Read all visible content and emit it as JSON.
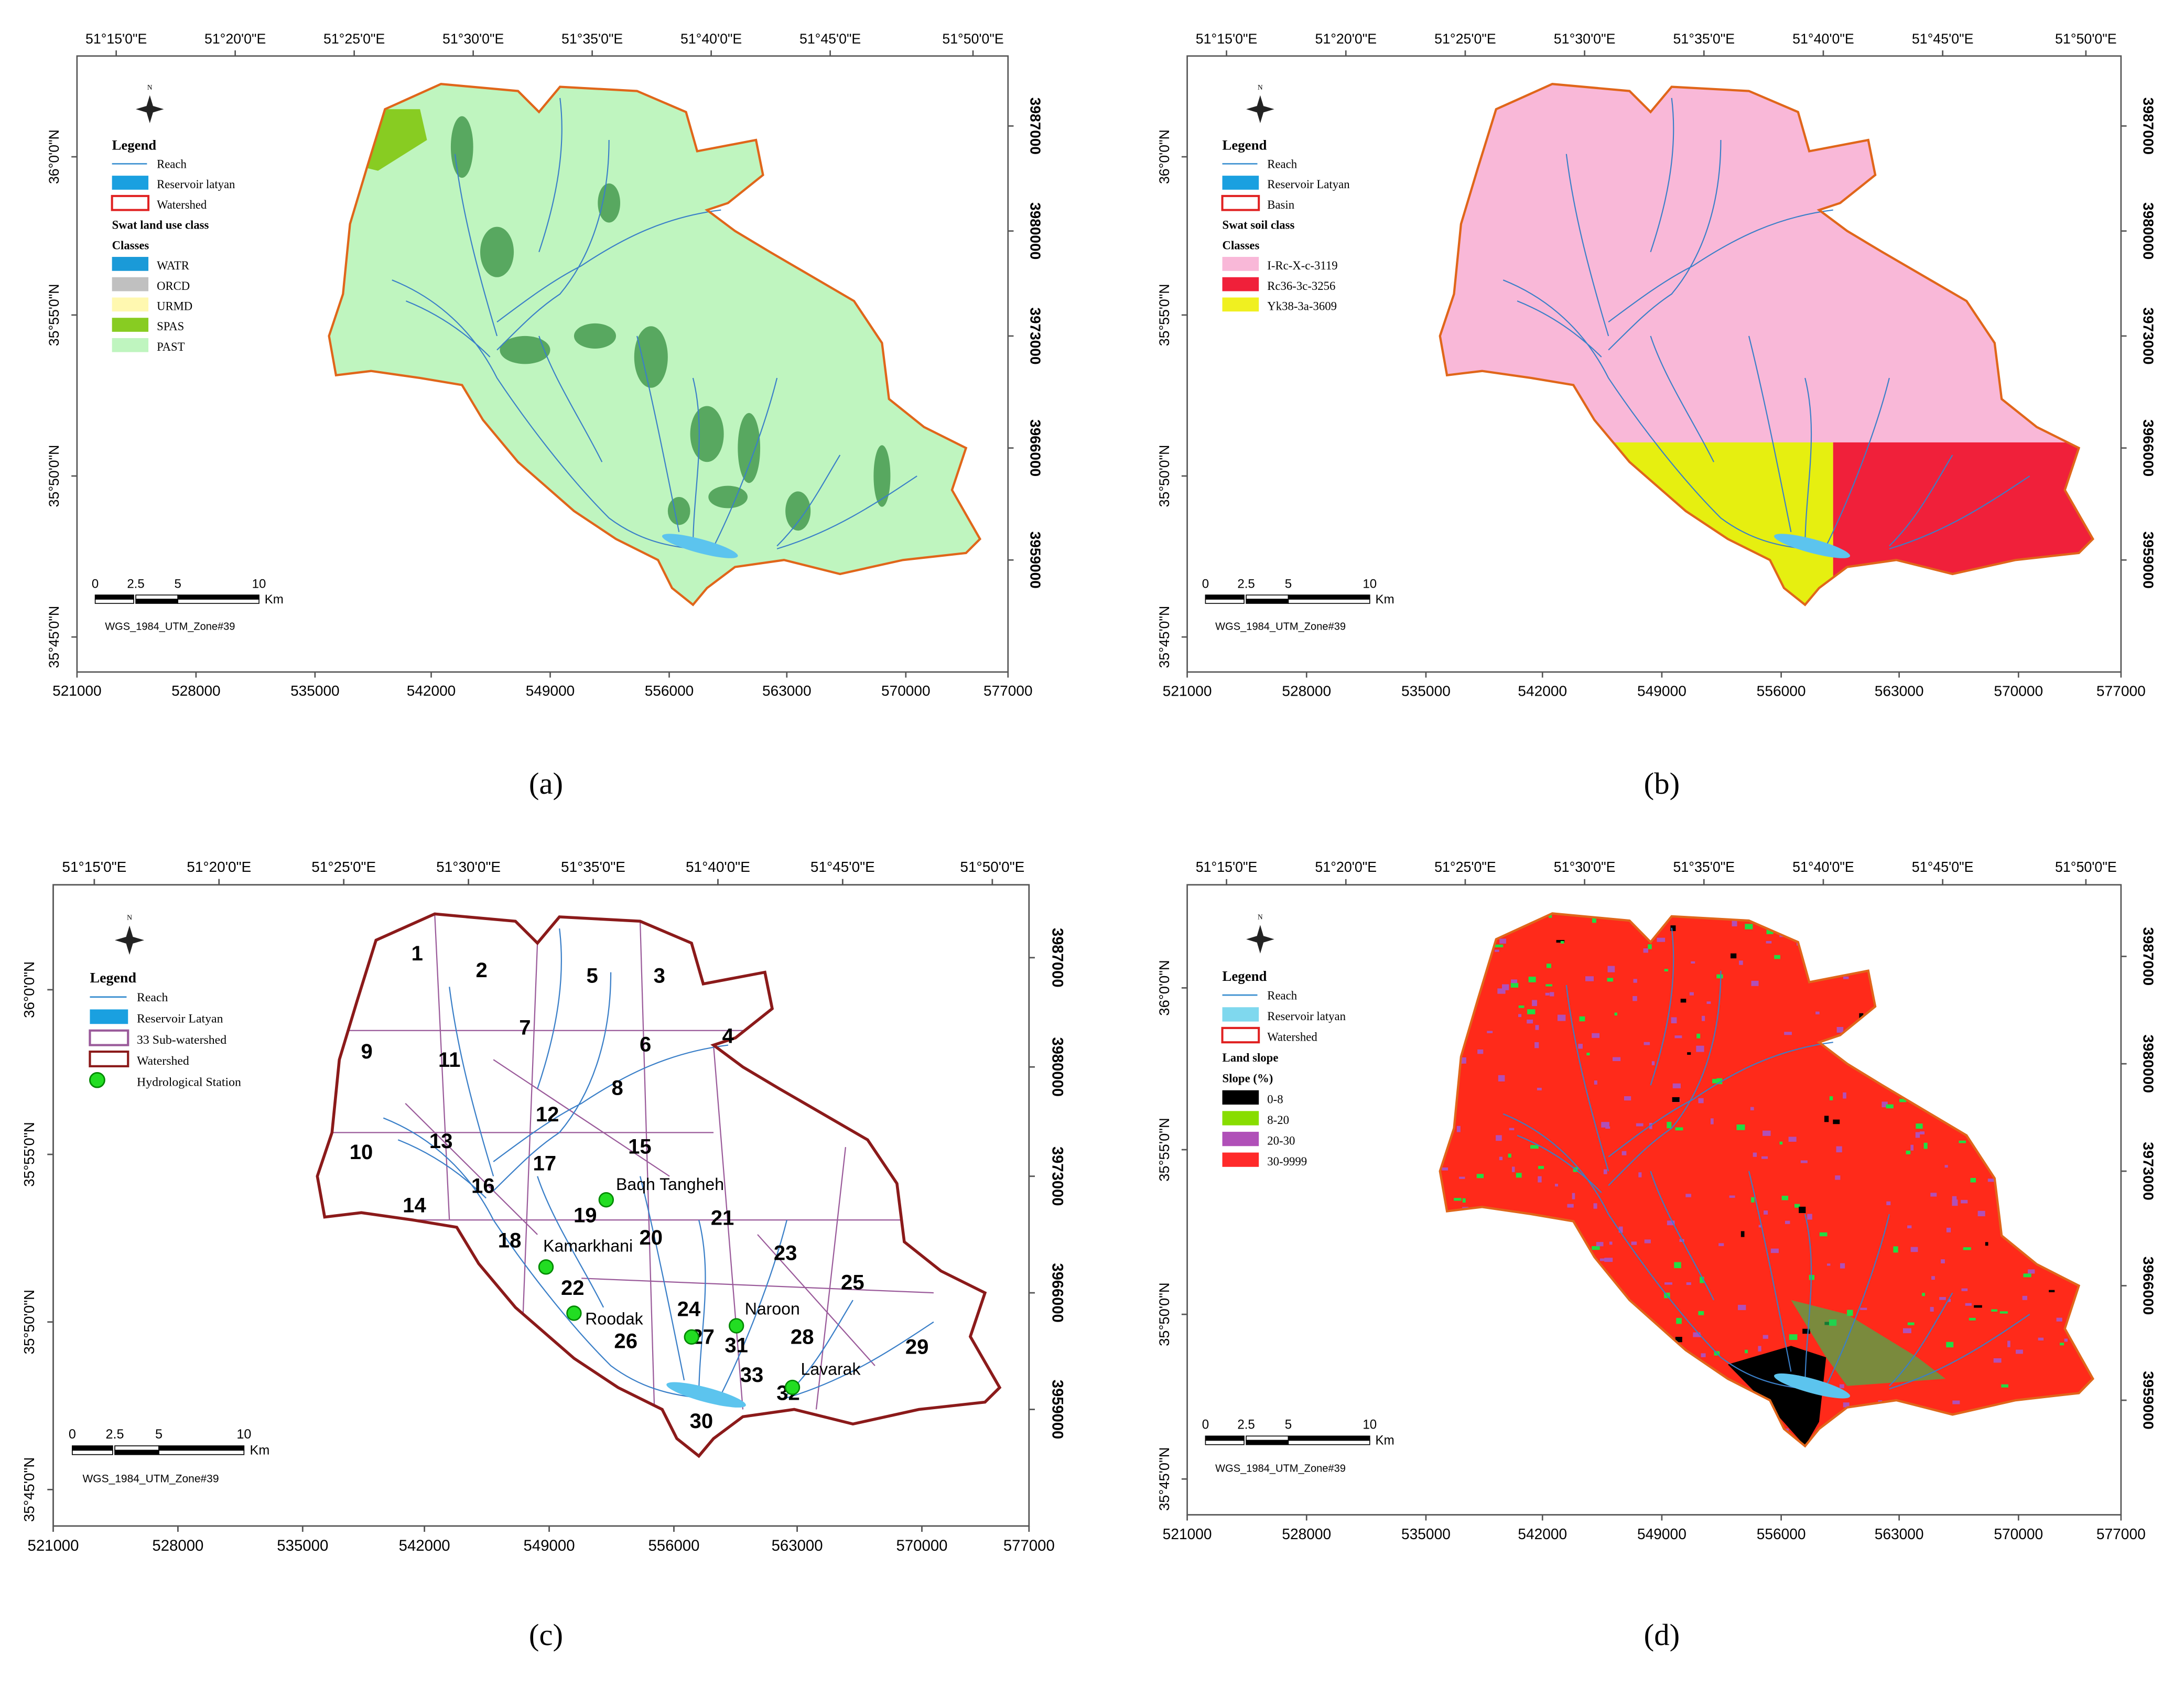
{
  "panels": [
    {
      "label": "(a)",
      "lon_ticks": [
        "51°15'0\"E",
        "51°20'0\"E",
        "51°25'0\"E",
        "51°30'0\"E",
        "51°35'0\"E",
        "51°40'0\"E",
        "51°45'0\"E",
        "51°50'0\"E"
      ],
      "lat_ticks": [
        "36°0'0\"N",
        "35°55'0\"N",
        "35°50'0\"N",
        "35°45'0\"N"
      ],
      "easting_ticks": [
        "521000",
        "528000",
        "535000",
        "542000",
        "549000",
        "556000",
        "563000",
        "570000",
        "577000"
      ],
      "northing_ticks": [
        "3987000",
        "3980000",
        "3973000",
        "3966000",
        "3959000"
      ],
      "north": "N",
      "legend": {
        "title": "Legend",
        "items": [
          {
            "text": "Reach",
            "symbol": "line",
            "color": "#3a8fd0"
          },
          {
            "text": "Reservoir latyan",
            "symbol": "fill",
            "color": "#1aa0e0"
          },
          {
            "text": "Watershed",
            "symbol": "outline",
            "color": "#e02020"
          },
          {
            "text": "Swat land use class"
          },
          {
            "text": "Classes"
          },
          {
            "text": "WATR",
            "symbol": "fill",
            "color": "#1a9ad8"
          },
          {
            "text": "ORCD",
            "symbol": "fill",
            "color": "#c0c0c0"
          },
          {
            "text": "URMD",
            "symbol": "fill",
            "color": "#fff8b0"
          },
          {
            "text": "SPAS",
            "symbol": "fill",
            "color": "#88cc22"
          },
          {
            "text": "PAST",
            "symbol": "fill",
            "color": "#bff5bf"
          }
        ]
      },
      "scale": [
        "0",
        "2.5",
        "5",
        "10"
      ],
      "scale_unit": "Km",
      "projection": "WGS_1984_UTM_Zone#39"
    },
    {
      "label": "(b)",
      "lon_ticks": [
        "51°15'0\"E",
        "51°20'0\"E",
        "51°25'0\"E",
        "51°30'0\"E",
        "51°35'0\"E",
        "51°40'0\"E",
        "51°45'0\"E",
        "51°50'0\"E"
      ],
      "lat_ticks": [
        "36°0'0\"N",
        "35°55'0\"N",
        "35°50'0\"N",
        "35°45'0\"N"
      ],
      "easting_ticks": [
        "521000",
        "528000",
        "535000",
        "542000",
        "549000",
        "556000",
        "563000",
        "570000",
        "577000"
      ],
      "northing_ticks": [
        "3987000",
        "3980000",
        "3973000",
        "3966000",
        "3959000"
      ],
      "north": "N",
      "legend": {
        "title": "Legend",
        "items": [
          {
            "text": "Reach",
            "symbol": "line",
            "color": "#3a8fd0"
          },
          {
            "text": "Reservoir Latyan",
            "symbol": "fill",
            "color": "#1aa0e0"
          },
          {
            "text": "Basin",
            "symbol": "outline",
            "color": "#e02020"
          },
          {
            "text": "Swat soil class"
          },
          {
            "text": "Classes"
          },
          {
            "text": "I-Rc-X-c-3119",
            "symbol": "fill",
            "color": "#f9b8d8"
          },
          {
            "text": "Rc36-3c-3256",
            "symbol": "fill",
            "color": "#f0203a"
          },
          {
            "text": "Yk38-3a-3609",
            "symbol": "fill",
            "color": "#f0f020"
          }
        ]
      },
      "scale": [
        "0",
        "2.5",
        "5",
        "10"
      ],
      "scale_unit": "Km",
      "projection": "WGS_1984_UTM_Zone#39"
    },
    {
      "label": "(c)",
      "lon_ticks": [
        "51°15'0\"E",
        "51°20'0\"E",
        "51°25'0\"E",
        "51°30'0\"E",
        "51°35'0\"E",
        "51°40'0\"E",
        "51°45'0\"E",
        "51°50'0\"E"
      ],
      "lat_ticks": [
        "36°0'0\"N",
        "35°55'0\"N",
        "35°50'0\"N",
        "35°45'0\"N"
      ],
      "easting_ticks": [
        "521000",
        "528000",
        "535000",
        "542000",
        "549000",
        "556000",
        "563000",
        "570000",
        "577000"
      ],
      "northing_ticks": [
        "3987000",
        "3980000",
        "3973000",
        "3966000",
        "3959000"
      ],
      "north": "N",
      "legend": {
        "title": "Legend",
        "items": [
          {
            "text": "Reach",
            "symbol": "line",
            "color": "#3a8fd0"
          },
          {
            "text": "Reservoir Latyan",
            "symbol": "fill",
            "color": "#1aa0e0"
          },
          {
            "text": "33 Sub-watershed",
            "symbol": "outline",
            "color": "#9a5a9a"
          },
          {
            "text": "Watershed",
            "symbol": "outline",
            "color": "#8b1a1a"
          },
          {
            "text": "Hydrological Station",
            "symbol": "dot",
            "color": "#22dd22"
          }
        ]
      },
      "scale": [
        "0",
        "2.5",
        "5",
        "10"
      ],
      "scale_unit": "Km",
      "projection": "WGS_1984_UTM_Zone#39",
      "subwatersheds": [
        "1",
        "2",
        "3",
        "4",
        "5",
        "6",
        "7",
        "8",
        "9",
        "10",
        "11",
        "12",
        "13",
        "14",
        "15",
        "16",
        "17",
        "18",
        "19",
        "20",
        "21",
        "22",
        "23",
        "24",
        "25",
        "26",
        "27",
        "28",
        "29",
        "30",
        "31",
        "32",
        "33"
      ],
      "stations": [
        "Baqh Tangheh",
        "Kamarkhani",
        "Roodak",
        "Naroon",
        "Lavarak"
      ]
    },
    {
      "label": "(d)",
      "lon_ticks": [
        "51°15'0\"E",
        "51°20'0\"E",
        "51°25'0\"E",
        "51°30'0\"E",
        "51°35'0\"E",
        "51°40'0\"E",
        "51°45'0\"E",
        "51°50'0\"E"
      ],
      "lat_ticks": [
        "36°0'0\"N",
        "35°55'0\"N",
        "35°50'0\"N",
        "35°45'0\"N"
      ],
      "easting_ticks": [
        "521000",
        "528000",
        "535000",
        "542000",
        "549000",
        "556000",
        "563000",
        "570000",
        "577000"
      ],
      "northing_ticks": [
        "3987000",
        "3980000",
        "3973000",
        "3966000",
        "3959000"
      ],
      "north": "N",
      "legend": {
        "title": "Legend",
        "items": [
          {
            "text": "Reach",
            "symbol": "line",
            "color": "#3a8fd0"
          },
          {
            "text": "Reservoir latyan",
            "symbol": "fill",
            "color": "#7fd8ee"
          },
          {
            "text": "Watershed",
            "symbol": "outline",
            "color": "#e02020"
          },
          {
            "text": "Land slope"
          },
          {
            "text": "Slope (%)"
          },
          {
            "text": "0-8",
            "symbol": "fill",
            "color": "#000000"
          },
          {
            "text": "8-20",
            "symbol": "fill",
            "color": "#88dd00"
          },
          {
            "text": "20-30",
            "symbol": "fill",
            "color": "#b050b8"
          },
          {
            "text": "30-9999",
            "symbol": "fill",
            "color": "#ff2a2a"
          }
        ]
      },
      "scale": [
        "0",
        "2.5",
        "5",
        "10"
      ],
      "scale_unit": "Km",
      "projection": "WGS_1984_UTM_Zone#39"
    }
  ]
}
